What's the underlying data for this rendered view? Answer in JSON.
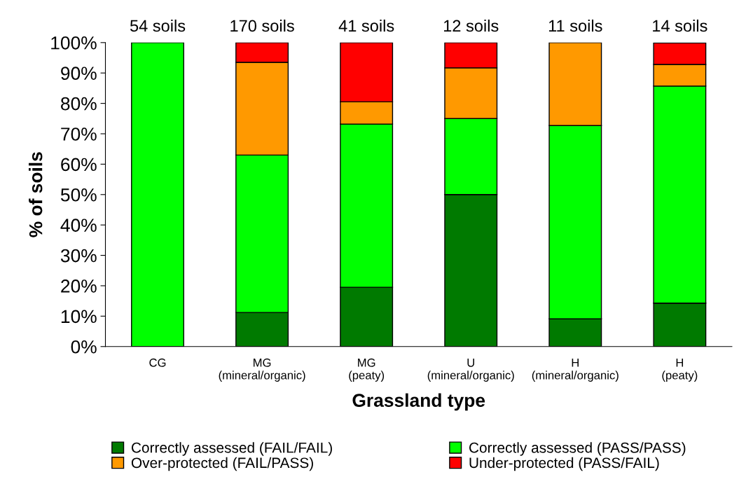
{
  "chart_data": {
    "type": "bar",
    "stacked": true,
    "xlabel": "Grassland type",
    "ylabel": "% of soils",
    "categories": [
      "CG",
      "MG\n(mineral/organic)",
      "MG\n(peaty)",
      "U\n(mineral/organic)",
      "H\n(mineral/organic)",
      "H\n(peaty)"
    ],
    "series": [
      {
        "name": "Correctly assessed (FAIL/FAIL)",
        "color": "#007a00",
        "values": [
          0,
          11.2,
          19.5,
          50,
          9.1,
          14.3
        ]
      },
      {
        "name": "Correctly assessed (PASS/PASS)",
        "color": "#00ff00",
        "values": [
          100,
          51.8,
          53.7,
          25,
          63.6,
          71.4
        ]
      },
      {
        "name": "Over-protected (FAIL/PASS)",
        "color": "#ff9900",
        "values": [
          0,
          30.5,
          7.3,
          16.7,
          27.3,
          7.1
        ]
      },
      {
        "name": "Under-protected (PASS/FAIL)",
        "color": "#ff0000",
        "values": [
          0,
          6.5,
          19.5,
          8.3,
          0,
          7.1
        ]
      }
    ],
    "annotations": [
      "54 soils",
      "170 soils",
      "41 soils",
      "12 soils",
      "11 soils",
      "14 soils"
    ],
    "ylim": [
      0,
      100
    ],
    "yticks": [
      {
        "value": 0,
        "label": "0%"
      },
      {
        "value": 10,
        "label": "10%"
      },
      {
        "value": 20,
        "label": "20%"
      },
      {
        "value": 30,
        "label": "30%"
      },
      {
        "value": 40,
        "label": "40%"
      },
      {
        "value": 50,
        "label": "50%"
      },
      {
        "value": 60,
        "label": "60%"
      },
      {
        "value": 70,
        "label": "70%"
      },
      {
        "value": 80,
        "label": "80%"
      },
      {
        "value": 90,
        "label": "90%"
      },
      {
        "value": 100,
        "label": "100%"
      }
    ],
    "legend": "bottom",
    "grid": false
  }
}
